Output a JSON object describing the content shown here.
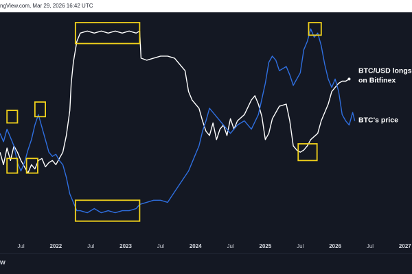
{
  "header": {
    "source_text": "ngView.com, Mar 29, 2026 16:42 UTC"
  },
  "footer": {
    "brand_text": "w"
  },
  "colors": {
    "background": "#141823",
    "longs_line": "#ffffff",
    "price_line": "#2f6fe0",
    "highlight_box": "#f2d21b"
  },
  "chart_data": {
    "type": "line",
    "title": "",
    "xlabel": "",
    "ylabel": "",
    "x_ticks": [
      {
        "label": "Jul",
        "x": 2021.5,
        "year": false
      },
      {
        "label": "2022",
        "x": 2022.0,
        "year": true
      },
      {
        "label": "Jul",
        "x": 2022.5,
        "year": false
      },
      {
        "label": "2023",
        "x": 2023.0,
        "year": true
      },
      {
        "label": "Jul",
        "x": 2023.5,
        "year": false
      },
      {
        "label": "2024",
        "x": 2024.0,
        "year": true
      },
      {
        "label": "Jul",
        "x": 2024.5,
        "year": false
      },
      {
        "label": "2025",
        "x": 2025.0,
        "year": true
      },
      {
        "label": "Jul",
        "x": 2025.5,
        "year": false
      },
      {
        "label": "2026",
        "x": 2026.0,
        "year": true
      },
      {
        "label": "Jul",
        "x": 2026.5,
        "year": false
      },
      {
        "label": "2027",
        "x": 2027.0,
        "year": true
      }
    ],
    "xlim": [
      2021.2,
      2027.1
    ],
    "ylim": [
      0,
      100
    ],
    "series": [
      {
        "name": "BTC/USD longs on Bitfinex",
        "color": "#ffffff",
        "points": [
          [
            2021.2,
            37
          ],
          [
            2021.25,
            31
          ],
          [
            2021.3,
            39
          ],
          [
            2021.35,
            33
          ],
          [
            2021.4,
            40
          ],
          [
            2021.45,
            37
          ],
          [
            2021.5,
            33
          ],
          [
            2021.55,
            30
          ],
          [
            2021.6,
            27
          ],
          [
            2021.65,
            31
          ],
          [
            2021.7,
            29
          ],
          [
            2021.75,
            33
          ],
          [
            2021.8,
            34
          ],
          [
            2021.85,
            30
          ],
          [
            2021.9,
            32
          ],
          [
            2021.95,
            33
          ],
          [
            2022.0,
            31
          ],
          [
            2022.05,
            34
          ],
          [
            2022.1,
            37
          ],
          [
            2022.15,
            45
          ],
          [
            2022.2,
            57
          ],
          [
            2022.22,
            70
          ],
          [
            2022.25,
            80
          ],
          [
            2022.3,
            90
          ],
          [
            2022.35,
            94
          ],
          [
            2022.45,
            95
          ],
          [
            2022.55,
            94
          ],
          [
            2022.65,
            95
          ],
          [
            2022.75,
            94
          ],
          [
            2022.85,
            95
          ],
          [
            2022.95,
            94
          ],
          [
            2023.05,
            95
          ],
          [
            2023.15,
            94
          ],
          [
            2023.2,
            95
          ],
          [
            2023.22,
            82
          ],
          [
            2023.3,
            81
          ],
          [
            2023.4,
            82
          ],
          [
            2023.5,
            83
          ],
          [
            2023.6,
            83
          ],
          [
            2023.7,
            82
          ],
          [
            2023.75,
            80
          ],
          [
            2023.85,
            76
          ],
          [
            2023.9,
            66
          ],
          [
            2023.95,
            62
          ],
          [
            2024.0,
            60
          ],
          [
            2024.05,
            58
          ],
          [
            2024.1,
            52
          ],
          [
            2024.15,
            47
          ],
          [
            2024.2,
            45
          ],
          [
            2024.25,
            51
          ],
          [
            2024.3,
            43
          ],
          [
            2024.35,
            48
          ],
          [
            2024.4,
            50
          ],
          [
            2024.45,
            45
          ],
          [
            2024.5,
            53
          ],
          [
            2024.55,
            48
          ],
          [
            2024.6,
            52
          ],
          [
            2024.7,
            55
          ],
          [
            2024.8,
            62
          ],
          [
            2024.85,
            64
          ],
          [
            2024.9,
            60
          ],
          [
            2024.95,
            54
          ],
          [
            2025.0,
            43
          ],
          [
            2025.05,
            46
          ],
          [
            2025.1,
            53
          ],
          [
            2025.2,
            59
          ],
          [
            2025.3,
            60
          ],
          [
            2025.35,
            52
          ],
          [
            2025.4,
            40
          ],
          [
            2025.45,
            38
          ],
          [
            2025.5,
            37
          ],
          [
            2025.55,
            38
          ],
          [
            2025.6,
            40
          ],
          [
            2025.65,
            43
          ],
          [
            2025.75,
            46
          ],
          [
            2025.8,
            52
          ],
          [
            2025.9,
            60
          ],
          [
            2025.95,
            66
          ],
          [
            2026.0,
            68
          ],
          [
            2026.05,
            70
          ],
          [
            2026.1,
            71
          ],
          [
            2026.15,
            71
          ],
          [
            2026.2,
            72
          ]
        ]
      },
      {
        "name": "BTC's price",
        "color": "#2f6fe0",
        "points": [
          [
            2021.2,
            46
          ],
          [
            2021.25,
            42
          ],
          [
            2021.3,
            48
          ],
          [
            2021.35,
            44
          ],
          [
            2021.4,
            40
          ],
          [
            2021.45,
            32
          ],
          [
            2021.5,
            28
          ],
          [
            2021.55,
            32
          ],
          [
            2021.6,
            38
          ],
          [
            2021.65,
            43
          ],
          [
            2021.7,
            50
          ],
          [
            2021.75,
            55
          ],
          [
            2021.8,
            49
          ],
          [
            2021.85,
            43
          ],
          [
            2021.9,
            37
          ],
          [
            2021.95,
            35
          ],
          [
            2022.0,
            36
          ],
          [
            2022.05,
            33
          ],
          [
            2022.1,
            31
          ],
          [
            2022.15,
            25
          ],
          [
            2022.2,
            17
          ],
          [
            2022.25,
            13
          ],
          [
            2022.3,
            9
          ],
          [
            2022.35,
            9
          ],
          [
            2022.45,
            8
          ],
          [
            2022.55,
            10
          ],
          [
            2022.65,
            8
          ],
          [
            2022.75,
            9
          ],
          [
            2022.85,
            8
          ],
          [
            2022.95,
            9
          ],
          [
            2023.05,
            9
          ],
          [
            2023.15,
            10
          ],
          [
            2023.2,
            12
          ],
          [
            2023.3,
            13
          ],
          [
            2023.4,
            14
          ],
          [
            2023.5,
            14
          ],
          [
            2023.6,
            13
          ],
          [
            2023.7,
            18
          ],
          [
            2023.8,
            23
          ],
          [
            2023.9,
            28
          ],
          [
            2024.0,
            36
          ],
          [
            2024.05,
            40
          ],
          [
            2024.1,
            47
          ],
          [
            2024.15,
            52
          ],
          [
            2024.2,
            58
          ],
          [
            2024.3,
            54
          ],
          [
            2024.4,
            50
          ],
          [
            2024.5,
            46
          ],
          [
            2024.6,
            50
          ],
          [
            2024.7,
            52
          ],
          [
            2024.8,
            48
          ],
          [
            2024.9,
            55
          ],
          [
            2025.0,
            70
          ],
          [
            2025.05,
            80
          ],
          [
            2025.1,
            83
          ],
          [
            2025.15,
            81
          ],
          [
            2025.2,
            76
          ],
          [
            2025.3,
            78
          ],
          [
            2025.35,
            74
          ],
          [
            2025.4,
            69
          ],
          [
            2025.45,
            72
          ],
          [
            2025.5,
            75
          ],
          [
            2025.55,
            86
          ],
          [
            2025.6,
            90
          ],
          [
            2025.65,
            96
          ],
          [
            2025.7,
            92
          ],
          [
            2025.75,
            94
          ],
          [
            2025.8,
            88
          ],
          [
            2025.85,
            79
          ],
          [
            2025.9,
            72
          ],
          [
            2025.95,
            68
          ],
          [
            2026.0,
            72
          ],
          [
            2026.05,
            66
          ],
          [
            2026.1,
            55
          ],
          [
            2026.15,
            52
          ],
          [
            2026.2,
            50
          ],
          [
            2026.25,
            56
          ],
          [
            2026.28,
            52
          ]
        ]
      }
    ],
    "highlight_boxes": [
      {
        "x0": 2022.28,
        "x1": 2023.2,
        "y0": 89,
        "y1": 99
      },
      {
        "x0": 2022.28,
        "x1": 2023.2,
        "y0": 4,
        "y1": 14
      },
      {
        "x0": 2021.3,
        "x1": 2021.45,
        "y0": 51,
        "y1": 57
      },
      {
        "x0": 2021.3,
        "x1": 2021.45,
        "y0": 27,
        "y1": 34
      },
      {
        "x0": 2021.7,
        "x1": 2021.85,
        "y0": 54,
        "y1": 61
      },
      {
        "x0": 2021.58,
        "x1": 2021.74,
        "y0": 27,
        "y1": 34
      },
      {
        "x0": 2025.47,
        "x1": 2025.74,
        "y0": 33,
        "y1": 41
      },
      {
        "x0": 2025.62,
        "x1": 2025.8,
        "y0": 93,
        "y1": 99
      }
    ],
    "annotations": [
      {
        "text": "BTC/USD longs",
        "anchor_series": 0,
        "line": 1
      },
      {
        "text": "on Bitfinex",
        "anchor_series": 0,
        "line": 2
      },
      {
        "text": "BTC's price",
        "anchor_series": 1,
        "line": 1
      }
    ],
    "grid": false,
    "legend": "none"
  }
}
